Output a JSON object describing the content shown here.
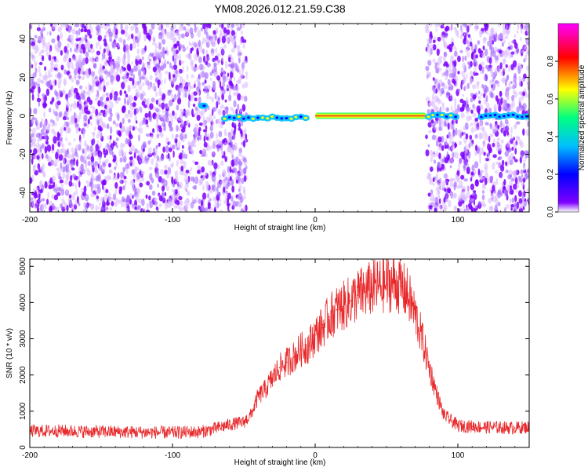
{
  "figure_title": "YM08.2026.012.21.59.C38",
  "colors": {
    "snr_line": "#e8282a",
    "track": "#e53030",
    "noise_dark": "#7f00ff",
    "noise_light": "#d9b8ff"
  },
  "colorbar": {
    "label": "Normalized spectral amplitude",
    "ticks": [
      "0.0",
      "0.2",
      "0.4",
      "0.6",
      "0.8"
    ],
    "tick_values": [
      0.0,
      0.2,
      0.4,
      0.6,
      0.8
    ],
    "range": [
      0,
      1
    ],
    "colormap": [
      "#ffffff",
      "#7f00ff",
      "#0000ff",
      "#00c0ff",
      "#00ff80",
      "#ffff00",
      "#ff0000",
      "#ff00ff"
    ]
  },
  "chart_data": [
    {
      "type": "heatmap",
      "title": "",
      "xlabel": "Height of straight line (km)",
      "ylabel": "Frequency (Hz)",
      "xlim": [
        -200,
        150
      ],
      "ylim": [
        -50,
        48
      ],
      "xticks": [
        -200,
        -100,
        0,
        100
      ],
      "xtick_labels": [
        "-200",
        "-100",
        "0",
        "100"
      ],
      "yticks": [
        -40,
        -20,
        0,
        20,
        40
      ],
      "ytick_labels": [
        "-40",
        "-20",
        "0",
        "20",
        "40"
      ],
      "noise_regions": [
        [
          -200,
          -48
        ],
        [
          78,
          150
        ]
      ],
      "clear_region": [
        -48,
        78
      ],
      "track": {
        "frequency": 0,
        "segments": [
          {
            "x": [
              -80,
              -77
            ],
            "freq": 5,
            "amplitude": 0.3
          },
          {
            "x": [
              -65,
              -5
            ],
            "freq": -1,
            "amplitude": 0.45
          },
          {
            "x": [
              0,
              78
            ],
            "freq": 0,
            "amplitude": 0.95
          },
          {
            "x": [
              78,
              100
            ],
            "freq": 0,
            "amplitude": 0.35
          },
          {
            "x": [
              115,
              150
            ],
            "freq": 0,
            "amplitude": 0.25
          }
        ]
      }
    },
    {
      "type": "line",
      "title": "",
      "xlabel": "Height of straight line (km)",
      "ylabel": "SNR (10 * v/v)",
      "xlim": [
        -200,
        150
      ],
      "ylim": [
        0,
        5200
      ],
      "xticks": [
        -200,
        -100,
        0,
        100
      ],
      "xtick_labels": [
        "-200",
        "-100",
        "0",
        "100"
      ],
      "yticks": [
        0,
        1000,
        2000,
        3000,
        4000,
        5000
      ],
      "ytick_labels": [
        "0",
        "1000",
        "2000",
        "3000",
        "4000",
        "5000"
      ],
      "series": [
        {
          "name": "",
          "x": [
            -200,
            -180,
            -160,
            -140,
            -120,
            -100,
            -80,
            -70,
            -60,
            -50,
            -45,
            -40,
            -35,
            -30,
            -25,
            -20,
            -15,
            -10,
            -5,
            0,
            5,
            10,
            15,
            20,
            25,
            30,
            35,
            40,
            45,
            50,
            55,
            60,
            65,
            70,
            75,
            80,
            85,
            90,
            100,
            110,
            120,
            130,
            140,
            150
          ],
          "values": [
            450,
            460,
            440,
            430,
            420,
            410,
            430,
            520,
            630,
            700,
            900,
            1400,
            1600,
            1900,
            2200,
            2350,
            2500,
            2700,
            2800,
            3100,
            3300,
            3600,
            3800,
            3900,
            4050,
            4200,
            4300,
            4400,
            4450,
            4500,
            4550,
            4450,
            4200,
            3700,
            3000,
            2200,
            1500,
            900,
            600,
            580,
            560,
            550,
            540,
            560
          ]
        }
      ]
    }
  ]
}
